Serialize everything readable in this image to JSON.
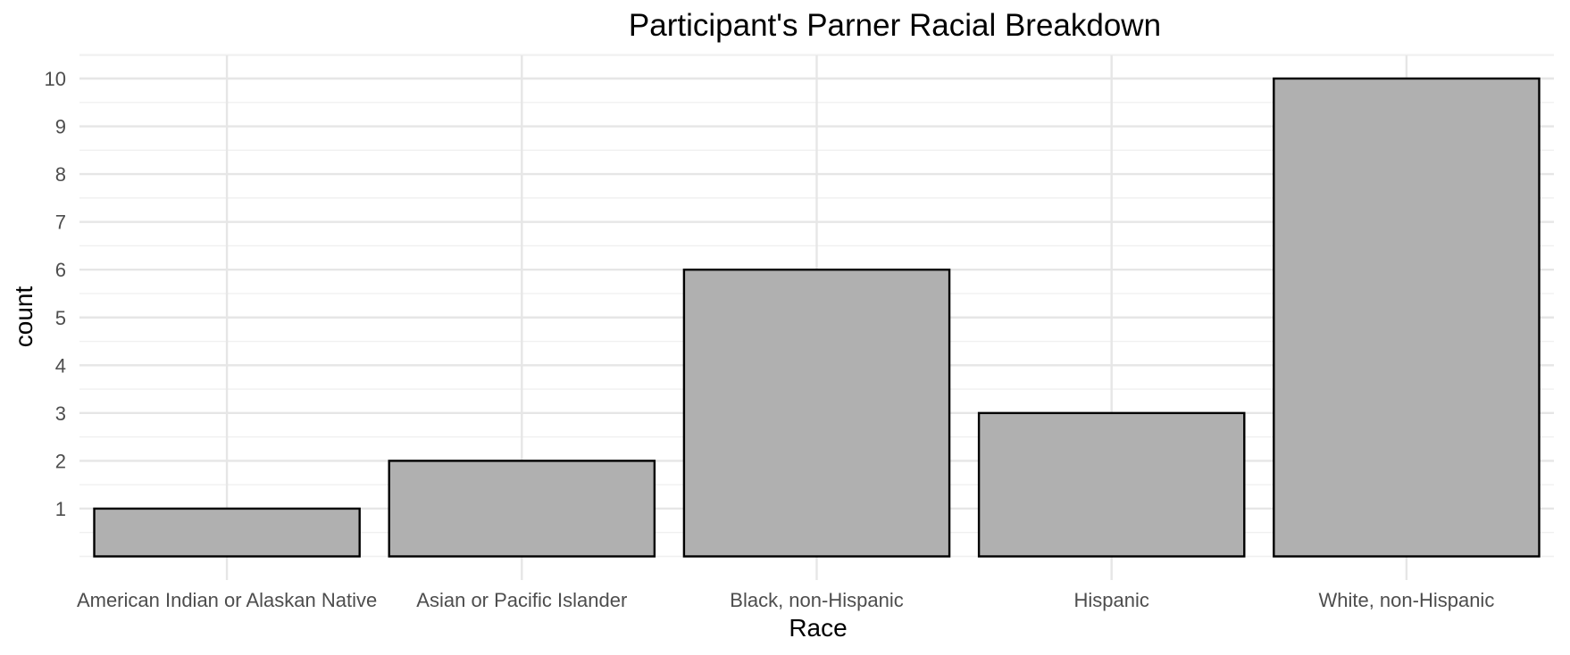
{
  "chart_data": {
    "type": "bar",
    "title": "Participant's Parner Racial Breakdown",
    "xlabel": "Race",
    "ylabel": "count",
    "categories": [
      "American Indian or Alaskan Native",
      "Asian or Pacific Islander",
      "Black, non-Hispanic",
      "Hispanic",
      "White, non-Hispanic"
    ],
    "values": [
      1,
      2,
      6,
      3,
      10
    ],
    "ylim": [
      0,
      10.5
    ],
    "yticks": [
      1,
      2,
      3,
      4,
      5,
      6,
      7,
      8,
      9,
      10
    ],
    "grid": true,
    "legend": "none",
    "colors": {
      "bar_fill": "#b0b0b0",
      "bar_stroke": "#000000",
      "grid_major": "#e6e6e6",
      "grid_minor": "#f0f0f0",
      "background": "#ffffff"
    }
  }
}
